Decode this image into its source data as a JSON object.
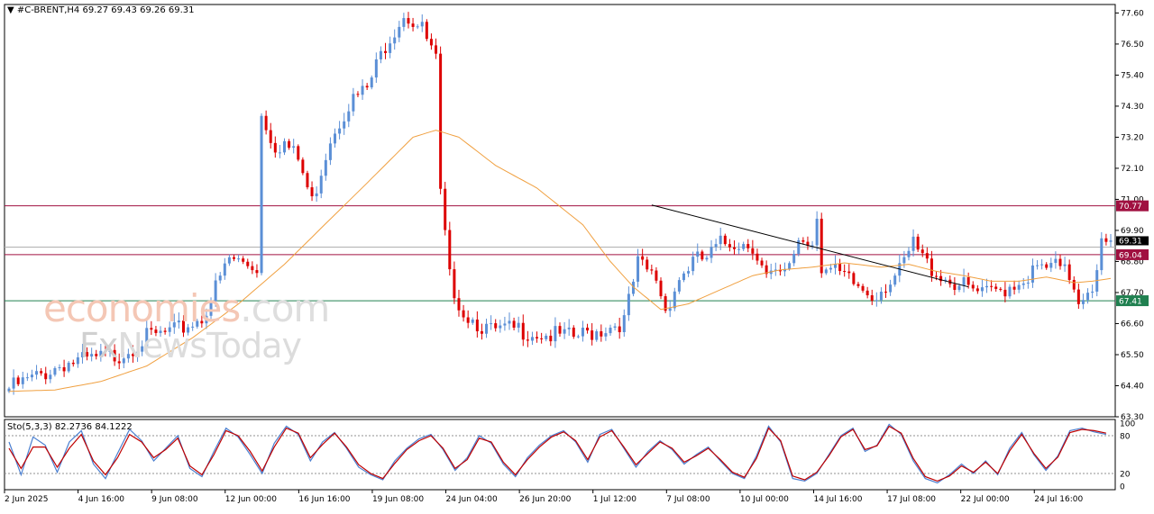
{
  "header": {
    "symbol": "#C-BRENT,H4",
    "ohlc": "69.27 69.43 69.26 69.31"
  },
  "stochastic": {
    "label": "Sto(5,3,3) 82.2736 84.1222",
    "levels": [
      "100",
      "80",
      "20",
      "0"
    ]
  },
  "watermark": {
    "brand_part1": "economies",
    "brand_part2": ".com",
    "brand2_part1": "Fx",
    "brand2_part2": "NewsToday"
  },
  "colors": {
    "bull": "#5b8fd6",
    "bear": "#dd0000",
    "ma": "#f0a040",
    "resistance": "#a01040",
    "support": "#208050",
    "trendline": "#000000",
    "stoch_main": "#4a7fd0",
    "stoch_signal": "#c00000",
    "current_price_tag": "#000000"
  },
  "chart_data": {
    "type": "candlestick",
    "timeframe": "H4",
    "y_ticks": [
      "77.60",
      "76.50",
      "75.40",
      "74.30",
      "73.20",
      "72.10",
      "71.00",
      "69.90",
      "68.80",
      "67.70",
      "66.60",
      "65.50",
      "64.40",
      "63.30"
    ],
    "x_ticks": [
      "2 Jun 2025",
      "4 Jun 16:00",
      "9 Jun 08:00",
      "12 Jun 00:00",
      "16 Jun 16:00",
      "19 Jun 08:00",
      "24 Jun 04:00",
      "26 Jun 20:00",
      "1 Jul 12:00",
      "7 Jul 08:00",
      "10 Jul 00:00",
      "14 Jul 16:00",
      "17 Jul 08:00",
      "22 Jul 00:00",
      "24 Jul 16:00"
    ],
    "ylim": [
      63.3,
      77.9
    ],
    "horizontal_lines": [
      {
        "label": "70.77",
        "value": 70.77,
        "role": "resistance"
      },
      {
        "label": "69.04",
        "value": 69.04,
        "role": "resistance"
      },
      {
        "label": "67.41",
        "value": 67.41,
        "role": "support"
      }
    ],
    "current_price": {
      "label": "69.31",
      "value": 69.31
    },
    "trendline": {
      "from_bar": 140,
      "from_value": 70.8,
      "to_bar": 209,
      "to_value": 67.9
    },
    "close_path": [
      [
        0,
        64.3
      ],
      [
        6,
        64.7
      ],
      [
        12,
        65.2
      ],
      [
        18,
        65.3
      ],
      [
        24,
        65.5
      ],
      [
        30,
        66.1
      ],
      [
        36,
        66.3
      ],
      [
        42,
        66.8
      ],
      [
        48,
        68.9
      ],
      [
        54,
        68.6
      ],
      [
        55,
        74.0
      ],
      [
        58,
        72.9
      ],
      [
        60,
        73.0
      ],
      [
        63,
        72.4
      ],
      [
        66,
        70.9
      ],
      [
        70,
        73.2
      ],
      [
        74,
        74.4
      ],
      [
        78,
        74.9
      ],
      [
        82,
        76.5
      ],
      [
        86,
        77.6
      ],
      [
        90,
        77.0
      ],
      [
        93,
        75.9
      ],
      [
        94,
        71.1
      ],
      [
        96,
        68.2
      ],
      [
        99,
        67.0
      ],
      [
        105,
        66.3
      ],
      [
        111,
        66.4
      ],
      [
        117,
        66.2
      ],
      [
        123,
        66.1
      ],
      [
        129,
        66.4
      ],
      [
        134,
        66.7
      ],
      [
        137,
        68.7
      ],
      [
        141,
        68.2
      ],
      [
        143,
        67.1
      ],
      [
        146,
        68.2
      ],
      [
        149,
        68.8
      ],
      [
        152,
        68.9
      ],
      [
        155,
        69.4
      ],
      [
        158,
        69.5
      ],
      [
        162,
        69.4
      ],
      [
        165,
        68.2
      ],
      [
        169,
        68.3
      ],
      [
        172,
        69.6
      ],
      [
        175,
        69.5
      ],
      [
        176,
        70.6
      ],
      [
        177,
        68.6
      ],
      [
        181,
        68.3
      ],
      [
        185,
        67.9
      ],
      [
        188,
        67.6
      ],
      [
        191,
        68.0
      ],
      [
        194,
        68.4
      ],
      [
        197,
        69.4
      ],
      [
        200,
        68.7
      ],
      [
        204,
        68.2
      ],
      [
        208,
        67.9
      ],
      [
        212,
        67.6
      ],
      [
        216,
        67.8
      ],
      [
        220,
        68.1
      ],
      [
        224,
        68.5
      ],
      [
        228,
        68.6
      ],
      [
        231,
        68.3
      ],
      [
        233,
        67.5
      ],
      [
        236,
        68.0
      ],
      [
        238,
        69.4
      ],
      [
        240,
        69.31
      ]
    ],
    "ma_path": [
      [
        0,
        64.2
      ],
      [
        10,
        64.25
      ],
      [
        20,
        64.55
      ],
      [
        30,
        65.1
      ],
      [
        40,
        66.1
      ],
      [
        50,
        67.3
      ],
      [
        60,
        68.7
      ],
      [
        70,
        70.3
      ],
      [
        80,
        71.9
      ],
      [
        88,
        73.2
      ],
      [
        93,
        73.45
      ],
      [
        98,
        73.2
      ],
      [
        106,
        72.2
      ],
      [
        115,
        71.4
      ],
      [
        125,
        70.1
      ],
      [
        131,
        68.8
      ],
      [
        136,
        67.9
      ],
      [
        142,
        67.1
      ],
      [
        148,
        67.3
      ],
      [
        155,
        67.8
      ],
      [
        162,
        68.3
      ],
      [
        168,
        68.5
      ],
      [
        175,
        68.6
      ],
      [
        182,
        68.75
      ],
      [
        190,
        68.6
      ],
      [
        196,
        68.7
      ],
      [
        202,
        68.45
      ],
      [
        208,
        68.3
      ],
      [
        214,
        68.1
      ],
      [
        220,
        68.1
      ],
      [
        226,
        68.25
      ],
      [
        232,
        68.05
      ],
      [
        236,
        68.1
      ],
      [
        240,
        68.2
      ]
    ],
    "stoch_main": [
      70,
      18,
      78,
      65,
      22,
      70,
      88,
      35,
      12,
      52,
      90,
      72,
      40,
      60,
      80,
      28,
      15,
      55,
      92,
      78,
      50,
      20,
      68,
      95,
      82,
      40,
      70,
      85,
      60,
      30,
      18,
      10,
      40,
      60,
      75,
      82,
      58,
      25,
      45,
      80,
      68,
      35,
      15,
      45,
      65,
      80,
      88,
      70,
      38,
      82,
      90,
      60,
      30,
      55,
      72,
      58,
      35,
      50,
      62,
      40,
      20,
      12,
      48,
      95,
      70,
      12,
      8,
      20,
      50,
      80,
      92,
      55,
      65,
      98,
      82,
      40,
      12,
      5,
      18,
      35,
      20,
      40,
      18,
      60,
      85,
      50,
      25,
      48,
      88,
      92,
      86,
      82
    ],
    "stoch_signal": [
      60,
      28,
      62,
      62,
      30,
      60,
      82,
      40,
      18,
      45,
      82,
      70,
      45,
      58,
      76,
      32,
      18,
      50,
      88,
      80,
      55,
      24,
      62,
      92,
      84,
      45,
      66,
      84,
      62,
      34,
      20,
      12,
      36,
      58,
      72,
      80,
      60,
      28,
      42,
      76,
      70,
      38,
      18,
      42,
      62,
      78,
      86,
      72,
      42,
      78,
      88,
      62,
      34,
      52,
      70,
      60,
      38,
      48,
      60,
      42,
      22,
      14,
      44,
      92,
      72,
      16,
      10,
      22,
      48,
      78,
      90,
      58,
      64,
      95,
      84,
      44,
      15,
      8,
      16,
      32,
      22,
      38,
      20,
      56,
      82,
      52,
      28,
      46,
      85,
      90,
      88,
      84
    ]
  }
}
